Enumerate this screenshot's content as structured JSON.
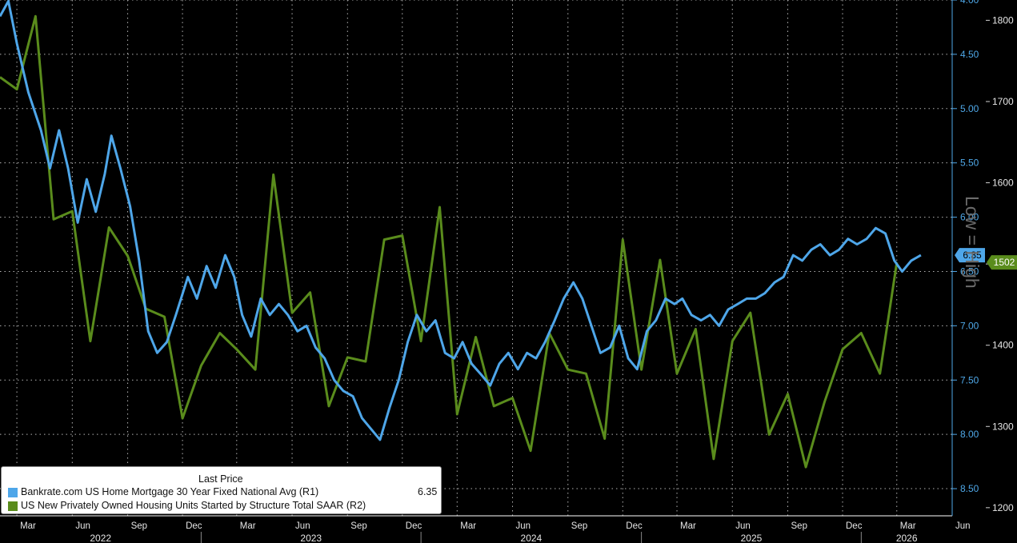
{
  "colors": {
    "background": "#000000",
    "grid": "#b4b4b4",
    "mortgage": "#4ea6e9",
    "starts": "#5a8c1c",
    "axis": "#ffffff"
  },
  "legend": {
    "header": "Last Price",
    "items": [
      {
        "name": "Bankrate.com US Home Mortgage 30 Year Fixed National Avg  (R1)",
        "value": "6.35",
        "color": "#4ea6e9"
      },
      {
        "name": "US New Privately Owned Housing Units Started by Structure Total SAAR  (R2)",
        "value": "1502",
        "color": "#5a8c1c"
      }
    ]
  },
  "scale_label": "Low = High",
  "chart_data": {
    "type": "line",
    "x_axis": {
      "months": [
        "Mar",
        "Jun",
        "Sep",
        "Dec",
        "Mar",
        "Jun",
        "Sep",
        "Dec",
        "Mar",
        "Jun",
        "Sep",
        "Dec",
        "Mar",
        "Jun",
        "Sep",
        "Dec",
        "Mar",
        "Jun"
      ],
      "years": [
        "2022",
        "2023",
        "2024",
        "2025",
        "2026"
      ],
      "range": [
        "2022-02",
        "2026-06"
      ]
    },
    "axes": {
      "R1": {
        "ticks": [
          "4.00",
          "4.50",
          "5.00",
          "5.50",
          "6.00",
          "6.50",
          "7.00",
          "7.50",
          "8.00",
          "8.50"
        ],
        "range": [
          4.0,
          8.75
        ],
        "inverted": true
      },
      "R2": {
        "ticks": [
          "1800",
          "1700",
          "1600",
          "1500",
          "1400",
          "1300",
          "1200"
        ],
        "range": [
          1190,
          1825
        ]
      }
    },
    "grid": true,
    "legend_position": "bottom-left",
    "series": [
      {
        "name": "Bankrate.com US Home Mortgage 30 Year Fixed National Avg  (R1)",
        "axis": "R1",
        "last": "6.35",
        "points": [
          [
            "2022-02-01",
            4.15
          ],
          [
            "2022-02-15",
            4.01
          ],
          [
            "2022-03-01",
            4.4
          ],
          [
            "2022-03-20",
            4.85
          ],
          [
            "2022-04-10",
            5.2
          ],
          [
            "2022-04-25",
            5.55
          ],
          [
            "2022-05-10",
            5.2
          ],
          [
            "2022-05-25",
            5.55
          ],
          [
            "2022-06-10",
            6.05
          ],
          [
            "2022-06-25",
            5.65
          ],
          [
            "2022-07-10",
            5.95
          ],
          [
            "2022-07-25",
            5.6
          ],
          [
            "2022-08-05",
            5.25
          ],
          [
            "2022-08-20",
            5.55
          ],
          [
            "2022-09-05",
            5.9
          ],
          [
            "2022-09-20",
            6.4
          ],
          [
            "2022-10-05",
            7.05
          ],
          [
            "2022-10-20",
            7.25
          ],
          [
            "2022-11-05",
            7.15
          ],
          [
            "2022-11-20",
            6.9
          ],
          [
            "2022-12-10",
            6.55
          ],
          [
            "2022-12-25",
            6.75
          ],
          [
            "2023-01-10",
            6.45
          ],
          [
            "2023-01-25",
            6.65
          ],
          [
            "2023-02-10",
            6.35
          ],
          [
            "2023-02-25",
            6.55
          ],
          [
            "2023-03-10",
            6.9
          ],
          [
            "2023-03-25",
            7.1
          ],
          [
            "2023-04-10",
            6.75
          ],
          [
            "2023-04-25",
            6.9
          ],
          [
            "2023-05-10",
            6.8
          ],
          [
            "2023-05-25",
            6.9
          ],
          [
            "2023-06-10",
            7.05
          ],
          [
            "2023-06-25",
            7.0
          ],
          [
            "2023-07-10",
            7.2
          ],
          [
            "2023-07-25",
            7.3
          ],
          [
            "2023-08-10",
            7.5
          ],
          [
            "2023-08-25",
            7.6
          ],
          [
            "2023-09-10",
            7.65
          ],
          [
            "2023-09-25",
            7.85
          ],
          [
            "2023-10-10",
            7.95
          ],
          [
            "2023-10-25",
            8.05
          ],
          [
            "2023-11-10",
            7.75
          ],
          [
            "2023-11-25",
            7.5
          ],
          [
            "2023-12-10",
            7.15
          ],
          [
            "2023-12-25",
            6.9
          ],
          [
            "2024-01-10",
            7.05
          ],
          [
            "2024-01-25",
            6.95
          ],
          [
            "2024-02-10",
            7.25
          ],
          [
            "2024-02-25",
            7.3
          ],
          [
            "2024-03-10",
            7.15
          ],
          [
            "2024-03-25",
            7.35
          ],
          [
            "2024-04-10",
            7.45
          ],
          [
            "2024-04-25",
            7.55
          ],
          [
            "2024-05-10",
            7.35
          ],
          [
            "2024-05-25",
            7.25
          ],
          [
            "2024-06-10",
            7.4
          ],
          [
            "2024-06-25",
            7.25
          ],
          [
            "2024-07-10",
            7.3
          ],
          [
            "2024-07-25",
            7.15
          ],
          [
            "2024-08-10",
            6.95
          ],
          [
            "2024-08-25",
            6.75
          ],
          [
            "2024-09-10",
            6.6
          ],
          [
            "2024-09-25",
            6.75
          ],
          [
            "2024-10-10",
            7.0
          ],
          [
            "2024-10-25",
            7.25
          ],
          [
            "2024-11-10",
            7.2
          ],
          [
            "2024-11-25",
            7.0
          ],
          [
            "2024-12-10",
            7.3
          ],
          [
            "2024-12-25",
            7.4
          ],
          [
            "2025-01-10",
            7.05
          ],
          [
            "2025-01-25",
            6.95
          ],
          [
            "2025-02-10",
            6.75
          ],
          [
            "2025-02-25",
            6.8
          ],
          [
            "2025-03-10",
            6.75
          ],
          [
            "2025-03-25",
            6.9
          ],
          [
            "2025-04-10",
            6.95
          ],
          [
            "2025-04-25",
            6.9
          ],
          [
            "2025-05-10",
            7.0
          ],
          [
            "2025-05-25",
            6.85
          ],
          [
            "2025-06-10",
            6.8
          ],
          [
            "2025-06-25",
            6.75
          ],
          [
            "2025-07-10",
            6.75
          ],
          [
            "2025-07-25",
            6.7
          ],
          [
            "2025-08-10",
            6.6
          ],
          [
            "2025-08-25",
            6.55
          ],
          [
            "2025-09-10",
            6.35
          ],
          [
            "2025-09-25",
            6.4
          ],
          [
            "2025-10-10",
            6.3
          ],
          [
            "2025-10-25",
            6.25
          ],
          [
            "2025-11-10",
            6.35
          ],
          [
            "2025-11-25",
            6.3
          ],
          [
            "2025-12-10",
            6.2
          ],
          [
            "2025-12-25",
            6.25
          ],
          [
            "2026-01-10",
            6.2
          ],
          [
            "2026-01-25",
            6.1
          ],
          [
            "2026-02-10",
            6.15
          ],
          [
            "2026-02-25",
            6.4
          ],
          [
            "2026-03-10",
            6.5
          ],
          [
            "2026-03-25",
            6.4
          ],
          [
            "2026-04-10",
            6.35
          ]
        ]
      },
      {
        "name": "US New Privately Owned Housing Units Started by Structure Total SAAR  (R2)",
        "axis": "R2",
        "last": "1502",
        "points": [
          [
            "2022-02-01",
            1730
          ],
          [
            "2022-03-01",
            1715
          ],
          [
            "2022-04-01",
            1805
          ],
          [
            "2022-05-01",
            1555
          ],
          [
            "2022-06-01",
            1565
          ],
          [
            "2022-07-01",
            1405
          ],
          [
            "2022-08-01",
            1545
          ],
          [
            "2022-09-01",
            1510
          ],
          [
            "2022-10-01",
            1445
          ],
          [
            "2022-11-01",
            1435
          ],
          [
            "2022-12-01",
            1310
          ],
          [
            "2023-01-01",
            1375
          ],
          [
            "2023-02-01",
            1415
          ],
          [
            "2023-03-01",
            1395
          ],
          [
            "2023-04-01",
            1370
          ],
          [
            "2023-05-01",
            1610
          ],
          [
            "2023-06-01",
            1440
          ],
          [
            "2023-07-01",
            1465
          ],
          [
            "2023-08-01",
            1325
          ],
          [
            "2023-09-01",
            1385
          ],
          [
            "2023-10-01",
            1380
          ],
          [
            "2023-11-01",
            1530
          ],
          [
            "2023-12-01",
            1535
          ],
          [
            "2024-01-01",
            1405
          ],
          [
            "2024-02-01",
            1570
          ],
          [
            "2024-03-01",
            1315
          ],
          [
            "2024-04-01",
            1410
          ],
          [
            "2024-05-01",
            1325
          ],
          [
            "2024-06-01",
            1335
          ],
          [
            "2024-07-01",
            1270
          ],
          [
            "2024-08-01",
            1415
          ],
          [
            "2024-09-01",
            1370
          ],
          [
            "2024-10-01",
            1365
          ],
          [
            "2024-11-01",
            1285
          ],
          [
            "2024-12-01",
            1530
          ],
          [
            "2025-01-01",
            1370
          ],
          [
            "2025-02-01",
            1505
          ],
          [
            "2025-03-01",
            1365
          ],
          [
            "2025-04-01",
            1420
          ],
          [
            "2025-05-01",
            1260
          ],
          [
            "2025-06-01",
            1405
          ],
          [
            "2025-07-01",
            1440
          ],
          [
            "2025-08-01",
            1290
          ],
          [
            "2025-09-01",
            1340
          ],
          [
            "2025-10-01",
            1250
          ],
          [
            "2025-11-01",
            1330
          ],
          [
            "2025-12-01",
            1395
          ],
          [
            "2026-01-01",
            1415
          ],
          [
            "2026-02-01",
            1365
          ],
          [
            "2026-03-01",
            1502
          ]
        ]
      }
    ]
  }
}
